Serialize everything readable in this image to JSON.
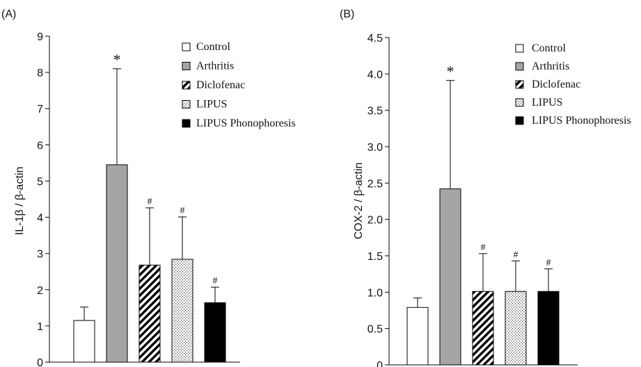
{
  "chart_data": [
    {
      "type": "bar",
      "panel_label": "(A)",
      "title": "",
      "xlabel": "",
      "ylabel": "IL-1β / β-actin",
      "ylim": [
        0,
        9
      ],
      "yticks": [
        "0",
        "1",
        "2",
        "3",
        "4",
        "5",
        "6",
        "7",
        "8",
        "9"
      ],
      "grid": false,
      "legend_position": "top-right",
      "categories": [
        "Control",
        "Arthritis",
        "Diclofenac",
        "LIPUS",
        "LIPUS Phonophoresis"
      ],
      "values": [
        1.15,
        5.45,
        2.68,
        2.84,
        1.64
      ],
      "errors": [
        0.37,
        2.65,
        1.58,
        1.17,
        0.43
      ],
      "annotations": [
        "",
        "*",
        "#",
        "#",
        "#"
      ]
    },
    {
      "type": "bar",
      "panel_label": "(B)",
      "title": "",
      "xlabel": "",
      "ylabel": "COX-2 / β-actin",
      "ylim": [
        0,
        4.5
      ],
      "yticks": [
        "0",
        "0.5",
        "1.0",
        "1.5",
        "2.0",
        "2.5",
        "3.0",
        "3.5",
        "4.0",
        "4.5"
      ],
      "grid": false,
      "legend_position": "top-right",
      "categories": [
        "Control",
        "Arthritis",
        "Diclofenac",
        "LIPUS",
        "LIPUS Phonophoresis"
      ],
      "values": [
        0.79,
        2.42,
        1.01,
        1.01,
        1.01
      ],
      "errors": [
        0.13,
        1.49,
        0.52,
        0.42,
        0.31
      ],
      "annotations": [
        "",
        "*",
        "#",
        "#",
        "#"
      ]
    }
  ],
  "series_styles": [
    {
      "fill": "#ffffff",
      "pattern": "none"
    },
    {
      "fill": "#a5a5a5",
      "pattern": "none"
    },
    {
      "fill": "#ffffff",
      "pattern": "hatch"
    },
    {
      "fill": "#ffffff",
      "pattern": "dots"
    },
    {
      "fill": "#000000",
      "pattern": "none"
    }
  ]
}
